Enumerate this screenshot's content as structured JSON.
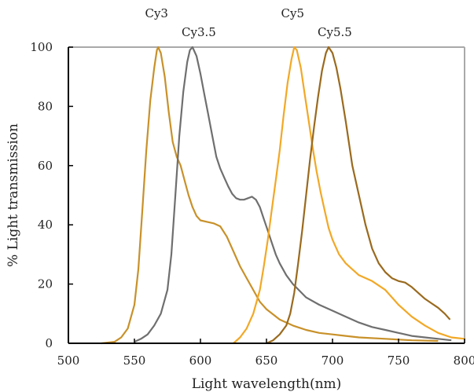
{
  "chart_data": {
    "type": "line",
    "title": "",
    "xlabel": "Light wavelength(nm)",
    "ylabel": "% Light transmission",
    "xlim": [
      500,
      800
    ],
    "ylim": [
      0,
      100
    ],
    "xticks": [
      500,
      550,
      600,
      650,
      700,
      750,
      800
    ],
    "yticks": [
      0,
      20,
      40,
      60,
      80,
      100
    ],
    "grid": false,
    "legend": "labels above peaks",
    "series": [
      {
        "name": "Cy3",
        "color": "#C8912A",
        "points": [
          [
            525,
            0
          ],
          [
            535,
            0.5
          ],
          [
            540,
            2
          ],
          [
            545,
            5
          ],
          [
            550,
            13
          ],
          [
            553,
            25
          ],
          [
            556,
            45
          ],
          [
            559,
            65
          ],
          [
            562,
            82
          ],
          [
            565,
            93
          ],
          [
            567,
            99
          ],
          [
            568,
            100
          ],
          [
            570,
            98
          ],
          [
            573,
            90
          ],
          [
            576,
            78
          ],
          [
            579,
            68
          ],
          [
            582,
            63
          ],
          [
            585,
            60
          ],
          [
            588,
            55
          ],
          [
            591,
            50
          ],
          [
            594,
            46
          ],
          [
            597,
            43
          ],
          [
            600,
            41.5
          ],
          [
            605,
            41
          ],
          [
            610,
            40.5
          ],
          [
            615,
            39.5
          ],
          [
            620,
            36
          ],
          [
            625,
            31
          ],
          [
            630,
            26
          ],
          [
            635,
            22
          ],
          [
            640,
            18
          ],
          [
            645,
            14
          ],
          [
            650,
            11.5
          ],
          [
            660,
            8
          ],
          [
            670,
            6
          ],
          [
            680,
            4.5
          ],
          [
            690,
            3.5
          ],
          [
            700,
            3
          ],
          [
            710,
            2.5
          ],
          [
            720,
            2
          ],
          [
            740,
            1.5
          ],
          [
            760,
            1
          ],
          [
            780,
            0.8
          ]
        ]
      },
      {
        "name": "Cy3.5",
        "color": "#6F6F6F",
        "points": [
          [
            550,
            0.5
          ],
          [
            555,
            1.5
          ],
          [
            560,
            3
          ],
          [
            565,
            6
          ],
          [
            570,
            10
          ],
          [
            575,
            18
          ],
          [
            578,
            30
          ],
          [
            581,
            50
          ],
          [
            584,
            70
          ],
          [
            587,
            85
          ],
          [
            590,
            95
          ],
          [
            592,
            99
          ],
          [
            594,
            100
          ],
          [
            597,
            97
          ],
          [
            600,
            91
          ],
          [
            603,
            84
          ],
          [
            606,
            77
          ],
          [
            609,
            70
          ],
          [
            612,
            63
          ],
          [
            615,
            59
          ],
          [
            618,
            56
          ],
          [
            621,
            53
          ],
          [
            624,
            50.5
          ],
          [
            627,
            49
          ],
          [
            630,
            48.5
          ],
          [
            633,
            48.5
          ],
          [
            636,
            49
          ],
          [
            639,
            49.5
          ],
          [
            642,
            48.5
          ],
          [
            645,
            46
          ],
          [
            648,
            42
          ],
          [
            651,
            38
          ],
          [
            654,
            34
          ],
          [
            657,
            30
          ],
          [
            660,
            27
          ],
          [
            665,
            23
          ],
          [
            670,
            20
          ],
          [
            680,
            15.5
          ],
          [
            690,
            13
          ],
          [
            700,
            11
          ],
          [
            710,
            9
          ],
          [
            720,
            7
          ],
          [
            730,
            5.5
          ],
          [
            740,
            4.5
          ],
          [
            750,
            3.5
          ],
          [
            760,
            2.5
          ],
          [
            770,
            2
          ],
          [
            780,
            1.5
          ],
          [
            790,
            1
          ]
        ]
      },
      {
        "name": "Cy5",
        "color": "#F2A826",
        "points": [
          [
            625,
            0
          ],
          [
            630,
            2
          ],
          [
            635,
            5
          ],
          [
            640,
            10
          ],
          [
            645,
            18
          ],
          [
            648,
            26
          ],
          [
            651,
            35
          ],
          [
            654,
            45
          ],
          [
            657,
            55
          ],
          [
            660,
            65
          ],
          [
            663,
            77
          ],
          [
            666,
            88
          ],
          [
            669,
            96
          ],
          [
            671,
            100
          ],
          [
            673,
            99
          ],
          [
            676,
            93
          ],
          [
            679,
            84
          ],
          [
            682,
            75
          ],
          [
            685,
            66
          ],
          [
            688,
            58
          ],
          [
            691,
            51
          ],
          [
            694,
            45
          ],
          [
            697,
            39
          ],
          [
            700,
            35
          ],
          [
            705,
            30
          ],
          [
            710,
            27
          ],
          [
            715,
            25
          ],
          [
            720,
            23
          ],
          [
            730,
            21
          ],
          [
            740,
            18
          ],
          [
            750,
            13
          ],
          [
            760,
            9
          ],
          [
            770,
            6
          ],
          [
            780,
            3.5
          ],
          [
            790,
            2
          ],
          [
            800,
            1.5
          ]
        ]
      },
      {
        "name": "Cy5.5",
        "color": "#9A6A1E",
        "points": [
          [
            650,
            0
          ],
          [
            655,
            1
          ],
          [
            660,
            3
          ],
          [
            665,
            6
          ],
          [
            668,
            10
          ],
          [
            671,
            17
          ],
          [
            674,
            27
          ],
          [
            677,
            38
          ],
          [
            680,
            50
          ],
          [
            683,
            62
          ],
          [
            686,
            73
          ],
          [
            689,
            83
          ],
          [
            692,
            92
          ],
          [
            695,
            98
          ],
          [
            697,
            100
          ],
          [
            700,
            98
          ],
          [
            703,
            93
          ],
          [
            706,
            86
          ],
          [
            710,
            75
          ],
          [
            715,
            60
          ],
          [
            720,
            50
          ],
          [
            725,
            40
          ],
          [
            730,
            32
          ],
          [
            735,
            27
          ],
          [
            740,
            24
          ],
          [
            745,
            22
          ],
          [
            750,
            21
          ],
          [
            755,
            20.5
          ],
          [
            760,
            19
          ],
          [
            765,
            17
          ],
          [
            770,
            15
          ],
          [
            775,
            13.5
          ],
          [
            780,
            12
          ],
          [
            785,
            10
          ],
          [
            789,
            8
          ]
        ]
      }
    ]
  }
}
